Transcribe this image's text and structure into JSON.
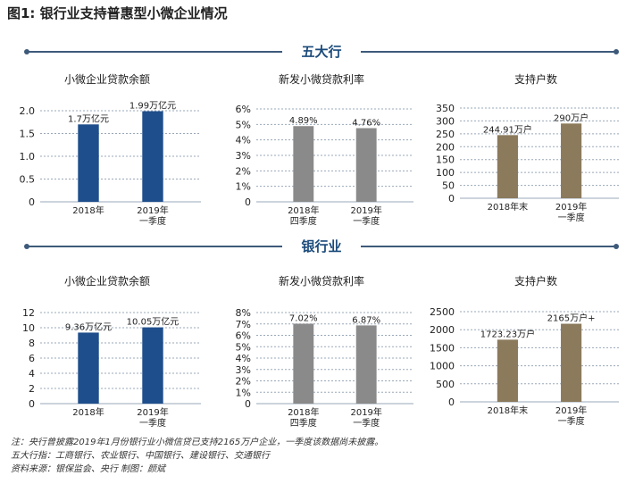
{
  "figure_title": "图1: 银行业支持普惠型小微企业情况",
  "sections": [
    {
      "label": "五大行"
    },
    {
      "label": "银行业"
    }
  ],
  "colors": {
    "blue": "#1f4e8c",
    "gray": "#8a8a8a",
    "olive": "#8b7a5c",
    "band": "#3d5a7a",
    "grid": "#9aa8b8"
  },
  "notes": [
    "注：央行曾披露2019年1月份银行业小微信贷已支持2165万户企业，一季度该数据尚未披露。",
    "五大行指：工商银行、农业银行、中国银行、建设银行、交通银行",
    "资料来源：银保监会、央行      制图：颜斌"
  ],
  "chart_data": [
    {
      "type": "bar",
      "section": "五大行",
      "title": "小微企业贷款余额",
      "categories": [
        [
          "2018年"
        ],
        [
          "2019年",
          "一季度"
        ]
      ],
      "values": [
        1.7,
        1.99
      ],
      "data_labels": [
        "1.7万亿元",
        "1.99万亿元"
      ],
      "ylim": [
        0,
        2.0
      ],
      "yticks": [
        "0",
        "0.5",
        "1.0",
        "1.5",
        "2.0"
      ],
      "ytick_values": [
        0,
        0.5,
        1.0,
        1.5,
        2.0
      ],
      "color": "#1f4e8c",
      "grid": true
    },
    {
      "type": "bar",
      "section": "五大行",
      "title": "新发小微贷款利率",
      "categories": [
        [
          "2018年",
          "四季度"
        ],
        [
          "2019年",
          "一季度"
        ]
      ],
      "values": [
        4.89,
        4.76
      ],
      "data_labels": [
        "4.89%",
        "4.76%"
      ],
      "ylim": [
        0,
        6
      ],
      "yticks": [
        "0",
        "1%",
        "2%",
        "3%",
        "4%",
        "5%",
        "6%"
      ],
      "ytick_values": [
        0,
        1,
        2,
        3,
        4,
        5,
        6
      ],
      "color": "#8a8a8a",
      "grid": true
    },
    {
      "type": "bar",
      "section": "五大行",
      "title": "支持户数",
      "categories": [
        [
          "2018年末"
        ],
        [
          "2019年",
          "一季度"
        ]
      ],
      "values": [
        244.91,
        290
      ],
      "data_labels": [
        "244.91万户",
        "290万户"
      ],
      "ylim": [
        0,
        350
      ],
      "yticks": [
        "0",
        "50",
        "100",
        "150",
        "200",
        "250",
        "300",
        "350"
      ],
      "ytick_values": [
        0,
        50,
        100,
        150,
        200,
        250,
        300,
        350
      ],
      "color": "#8b7a5c",
      "grid": true
    },
    {
      "type": "bar",
      "section": "银行业",
      "title": "小微企业贷款余额",
      "categories": [
        [
          "2018年"
        ],
        [
          "2019年",
          "一季度"
        ]
      ],
      "values": [
        9.36,
        10.05
      ],
      "data_labels": [
        "9.36万亿元",
        "10.05万亿元"
      ],
      "ylim": [
        0,
        12
      ],
      "yticks": [
        "0",
        "2",
        "4",
        "6",
        "8",
        "10",
        "12"
      ],
      "ytick_values": [
        0,
        2,
        4,
        6,
        8,
        10,
        12
      ],
      "color": "#1f4e8c",
      "grid": true
    },
    {
      "type": "bar",
      "section": "银行业",
      "title": "新发小微贷款利率",
      "categories": [
        [
          "2018年",
          "四季度"
        ],
        [
          "2019年",
          "一季度"
        ]
      ],
      "values": [
        7.02,
        6.87
      ],
      "data_labels": [
        "7.02%",
        "6.87%"
      ],
      "ylim": [
        0,
        8
      ],
      "yticks": [
        "0",
        "1%",
        "2%",
        "3%",
        "4%",
        "5%",
        "6%",
        "7%",
        "8%"
      ],
      "ytick_values": [
        0,
        1,
        2,
        3,
        4,
        5,
        6,
        7,
        8
      ],
      "color": "#8a8a8a",
      "grid": true
    },
    {
      "type": "bar",
      "section": "银行业",
      "title": "支持户数",
      "categories": [
        [
          "2018年末"
        ],
        [
          "2019年",
          "一季度"
        ]
      ],
      "values": [
        1723.23,
        2165
      ],
      "data_labels": [
        "1723.23万户",
        "2165万户+"
      ],
      "ylim": [
        0,
        2500
      ],
      "yticks": [
        "0",
        "500",
        "1000",
        "1500",
        "2000",
        "2500"
      ],
      "ytick_values": [
        0,
        500,
        1000,
        1500,
        2000,
        2500
      ],
      "color": "#8b7a5c",
      "grid": true
    }
  ]
}
